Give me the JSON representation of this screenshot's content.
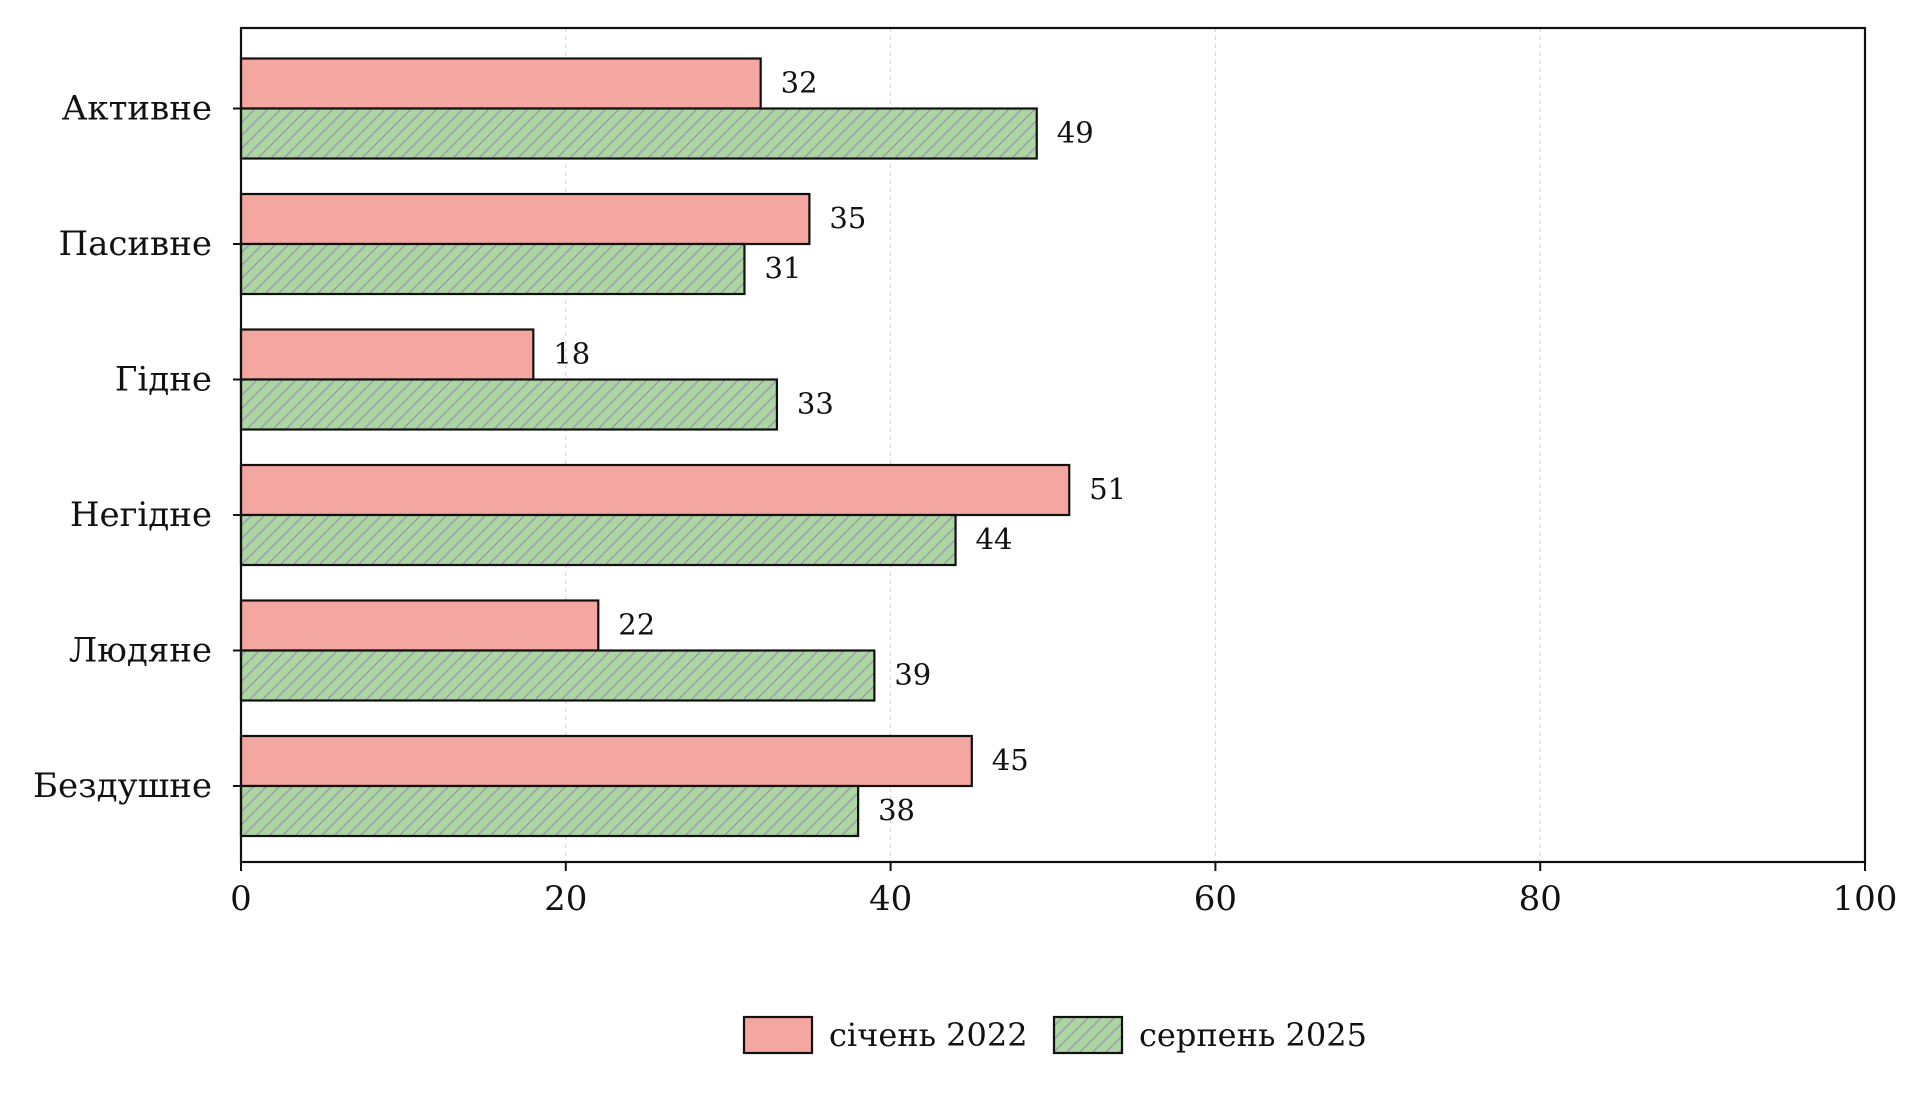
{
  "chart_data": {
    "type": "bar",
    "orientation": "horizontal",
    "categories": [
      "Активне",
      "Пасивне",
      "Гідне",
      "Негідне",
      "Людяне",
      "Бездушне"
    ],
    "series": [
      {
        "name": "січень 2022",
        "values": [
          32,
          35,
          18,
          51,
          22,
          45
        ],
        "color": "#f4a6a0",
        "hatch": false
      },
      {
        "name": "серпень 2025",
        "values": [
          49,
          31,
          33,
          44,
          39,
          38
        ],
        "color": "#acd6a1",
        "hatch": true,
        "hatch_color": "#a08fb3"
      }
    ],
    "title": "",
    "xlabel": "",
    "ylabel": "",
    "xlim": [
      0,
      100
    ],
    "xticks": [
      0,
      20,
      40,
      60,
      80,
      100
    ],
    "grid": "vertical-dashed",
    "legend_position": "bottom-center",
    "data_labels": true
  }
}
